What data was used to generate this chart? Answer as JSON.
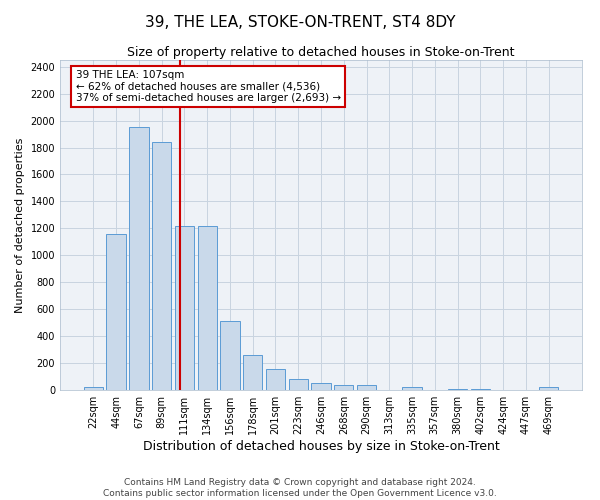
{
  "title": "39, THE LEA, STOKE-ON-TRENT, ST4 8DY",
  "subtitle": "Size of property relative to detached houses in Stoke-on-Trent",
  "xlabel": "Distribution of detached houses by size in Stoke-on-Trent",
  "ylabel": "Number of detached properties",
  "bin_labels": [
    "22sqm",
    "44sqm",
    "67sqm",
    "89sqm",
    "111sqm",
    "134sqm",
    "156sqm",
    "178sqm",
    "201sqm",
    "223sqm",
    "246sqm",
    "268sqm",
    "290sqm",
    "313sqm",
    "335sqm",
    "357sqm",
    "380sqm",
    "402sqm",
    "424sqm",
    "447sqm",
    "469sqm"
  ],
  "bar_values": [
    25,
    1155,
    1950,
    1840,
    1220,
    1220,
    510,
    260,
    155,
    80,
    50,
    35,
    35,
    0,
    20,
    0,
    5,
    5,
    0,
    0,
    20
  ],
  "bar_color": "#c9d9ea",
  "bar_edge_color": "#5b9bd5",
  "vline_color": "#cc0000",
  "annotation_text": "39 THE LEA: 107sqm\n← 62% of detached houses are smaller (4,536)\n37% of semi-detached houses are larger (2,693) →",
  "annotation_box_color": "#ffffff",
  "annotation_box_edge": "#cc0000",
  "grid_color": "#c8d4e0",
  "background_color": "#eef2f7",
  "ylim": [
    0,
    2450
  ],
  "yticks": [
    0,
    200,
    400,
    600,
    800,
    1000,
    1200,
    1400,
    1600,
    1800,
    2000,
    2200,
    2400
  ],
  "footer": "Contains HM Land Registry data © Crown copyright and database right 2024.\nContains public sector information licensed under the Open Government Licence v3.0.",
  "title_fontsize": 11,
  "subtitle_fontsize": 9,
  "xlabel_fontsize": 9,
  "ylabel_fontsize": 8,
  "tick_fontsize": 7,
  "annotation_fontsize": 7.5,
  "footer_fontsize": 6.5
}
